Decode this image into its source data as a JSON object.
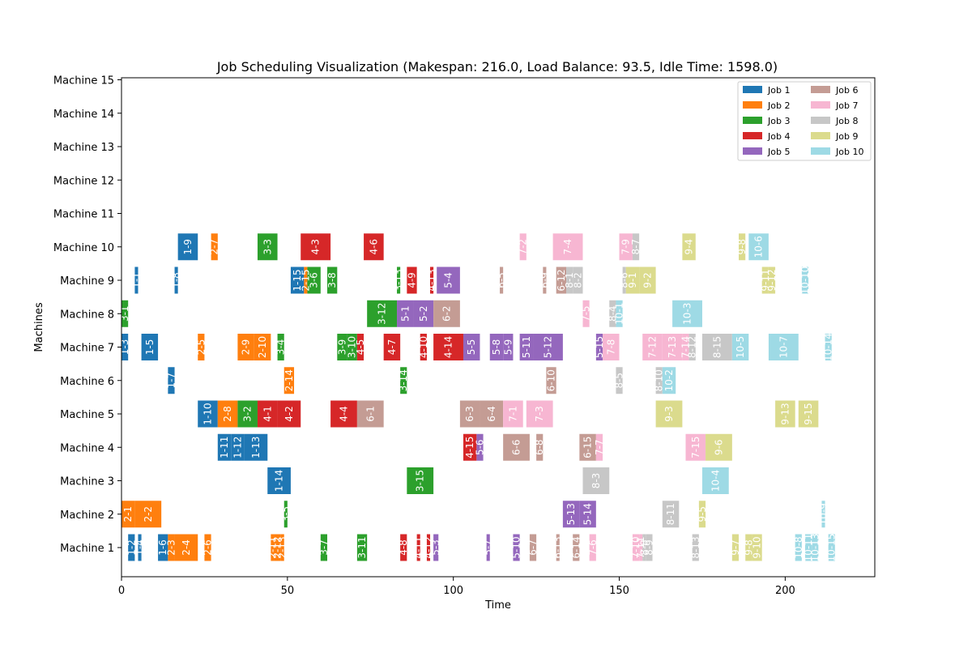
{
  "chart_data": {
    "type": "gantt",
    "title": "Job Scheduling Visualization (Makespan: 216.0, Load Balance: 93.5, Idle Time: 1598.0)",
    "xlabel": "Time",
    "ylabel": "Machines",
    "xlim": [
      0,
      227
    ],
    "x_ticks": [
      0,
      50,
      100,
      150,
      200
    ],
    "machines": [
      "Machine 1",
      "Machine 2",
      "Machine 3",
      "Machine 4",
      "Machine 5",
      "Machine 6",
      "Machine 7",
      "Machine 8",
      "Machine 9",
      "Machine 10",
      "Machine 11",
      "Machine 12",
      "Machine 13",
      "Machine 14",
      "Machine 15"
    ],
    "legend": {
      "placement": "top-right",
      "columns": 2,
      "entries": [
        {
          "name": "Job 1",
          "color": "#1f77b4"
        },
        {
          "name": "Job 2",
          "color": "#ff7f0e"
        },
        {
          "name": "Job 3",
          "color": "#2ca02c"
        },
        {
          "name": "Job 4",
          "color": "#d62728"
        },
        {
          "name": "Job 5",
          "color": "#9467bd"
        },
        {
          "name": "Job 6",
          "color": "#c49c94"
        },
        {
          "name": "Job 7",
          "color": "#f7b6d2"
        },
        {
          "name": "Job 8",
          "color": "#c7c7c7"
        },
        {
          "name": "Job 9",
          "color": "#dbdb8d"
        },
        {
          "name": "Job 10",
          "color": "#9edae5"
        }
      ]
    },
    "tasks": [
      {
        "m": 1,
        "job": 1,
        "label": "1-2",
        "start": 2,
        "dur": 2
      },
      {
        "m": 1,
        "job": 1,
        "label": "1-4",
        "start": 5,
        "dur": 1
      },
      {
        "m": 1,
        "job": 1,
        "label": "1-6",
        "start": 11,
        "dur": 3
      },
      {
        "m": 1,
        "job": 2,
        "label": "2-3",
        "start": 14,
        "dur": 2
      },
      {
        "m": 1,
        "job": 2,
        "label": "2-4",
        "start": 16,
        "dur": 7
      },
      {
        "m": 1,
        "job": 2,
        "label": "2-6",
        "start": 25,
        "dur": 2
      },
      {
        "m": 1,
        "job": 2,
        "label": "2-11",
        "start": 45,
        "dur": 1
      },
      {
        "m": 1,
        "job": 2,
        "label": "2-12",
        "start": 46,
        "dur": 2
      },
      {
        "m": 1,
        "job": 2,
        "label": "2-13",
        "start": 48,
        "dur": 1
      },
      {
        "m": 1,
        "job": 3,
        "label": "3-7",
        "start": 60,
        "dur": 2
      },
      {
        "m": 1,
        "job": 3,
        "label": "3-11",
        "start": 71,
        "dur": 3
      },
      {
        "m": 1,
        "job": 4,
        "label": "4-8",
        "start": 84,
        "dur": 2
      },
      {
        "m": 1,
        "job": 4,
        "label": "4-11",
        "start": 89,
        "dur": 1
      },
      {
        "m": 1,
        "job": 4,
        "label": "4-12",
        "start": 92,
        "dur": 1
      },
      {
        "m": 1,
        "job": 5,
        "label": "5-3",
        "start": 94,
        "dur": 1.5
      },
      {
        "m": 1,
        "job": 5,
        "label": "5-7",
        "start": 110,
        "dur": 1
      },
      {
        "m": 1,
        "job": 5,
        "label": "5-10",
        "start": 118,
        "dur": 2
      },
      {
        "m": 1,
        "job": 6,
        "label": "6-7",
        "start": 123,
        "dur": 2
      },
      {
        "m": 1,
        "job": 6,
        "label": "6-13",
        "start": 131,
        "dur": 1
      },
      {
        "m": 1,
        "job": 6,
        "label": "6-14",
        "start": 136,
        "dur": 2
      },
      {
        "m": 1,
        "job": 7,
        "label": "7-6",
        "start": 141,
        "dur": 2
      },
      {
        "m": 1,
        "job": 7,
        "label": "7-10",
        "start": 154,
        "dur": 2
      },
      {
        "m": 1,
        "job": 7,
        "label": "7-11",
        "start": 156,
        "dur": 1
      },
      {
        "m": 1,
        "job": 8,
        "label": "8-8",
        "start": 157,
        "dur": 1
      },
      {
        "m": 1,
        "job": 8,
        "label": "8-9",
        "start": 158,
        "dur": 2
      },
      {
        "m": 1,
        "job": 8,
        "label": "8-13",
        "start": 172,
        "dur": 2
      },
      {
        "m": 1,
        "job": 9,
        "label": "9-7",
        "start": 184,
        "dur": 2
      },
      {
        "m": 1,
        "job": 9,
        "label": "9-8",
        "start": 188,
        "dur": 2
      },
      {
        "m": 1,
        "job": 9,
        "label": "9-10",
        "start": 190,
        "dur": 3
      },
      {
        "m": 1,
        "job": 10,
        "label": "10-8",
        "start": 203,
        "dur": 2
      },
      {
        "m": 1,
        "job": 10,
        "label": "10-11",
        "start": 206,
        "dur": 2
      },
      {
        "m": 1,
        "job": 10,
        "label": "10-13",
        "start": 208,
        "dur": 2
      },
      {
        "m": 1,
        "job": 10,
        "label": "10-15",
        "start": 213,
        "dur": 2
      },
      {
        "m": 2,
        "job": 2,
        "label": "2-1",
        "start": 0,
        "dur": 4
      },
      {
        "m": 2,
        "job": 2,
        "label": "2-2",
        "start": 4,
        "dur": 8
      },
      {
        "m": 2,
        "job": 3,
        "label": "3-5",
        "start": 49,
        "dur": 1
      },
      {
        "m": 2,
        "job": 5,
        "label": "5-13",
        "start": 133,
        "dur": 5
      },
      {
        "m": 2,
        "job": 5,
        "label": "5-14",
        "start": 138,
        "dur": 5
      },
      {
        "m": 2,
        "job": 8,
        "label": "8-11",
        "start": 163,
        "dur": 5
      },
      {
        "m": 2,
        "job": 9,
        "label": "9-5",
        "start": 174,
        "dur": 2
      },
      {
        "m": 2,
        "job": 10,
        "label": "10-9",
        "start": 211,
        "dur": 1
      },
      {
        "m": 3,
        "job": 1,
        "label": "1-14",
        "start": 44,
        "dur": 7
      },
      {
        "m": 3,
        "job": 3,
        "label": "3-15",
        "start": 86,
        "dur": 8
      },
      {
        "m": 3,
        "job": 8,
        "label": "8-3",
        "start": 139,
        "dur": 8
      },
      {
        "m": 3,
        "job": 10,
        "label": "10-4",
        "start": 175,
        "dur": 8
      },
      {
        "m": 4,
        "job": 1,
        "label": "1-11",
        "start": 29,
        "dur": 4
      },
      {
        "m": 4,
        "job": 1,
        "label": "1-12",
        "start": 33,
        "dur": 4
      },
      {
        "m": 4,
        "job": 1,
        "label": "1-13",
        "start": 37,
        "dur": 7
      },
      {
        "m": 4,
        "job": 4,
        "label": "4-15",
        "start": 103,
        "dur": 4
      },
      {
        "m": 4,
        "job": 5,
        "label": "5-6",
        "start": 107,
        "dur": 2
      },
      {
        "m": 4,
        "job": 6,
        "label": "6-6",
        "start": 115,
        "dur": 8
      },
      {
        "m": 4,
        "job": 6,
        "label": "6-8",
        "start": 125,
        "dur": 2
      },
      {
        "m": 4,
        "job": 6,
        "label": "6-15",
        "start": 138,
        "dur": 5
      },
      {
        "m": 4,
        "job": 7,
        "label": "7-7",
        "start": 143,
        "dur": 2
      },
      {
        "m": 4,
        "job": 7,
        "label": "7-15",
        "start": 170,
        "dur": 6
      },
      {
        "m": 4,
        "job": 9,
        "label": "9-6",
        "start": 176,
        "dur": 8
      },
      {
        "m": 5,
        "job": 1,
        "label": "1-10",
        "start": 23,
        "dur": 6
      },
      {
        "m": 5,
        "job": 2,
        "label": "2-8",
        "start": 29,
        "dur": 6
      },
      {
        "m": 5,
        "job": 3,
        "label": "3-2",
        "start": 35,
        "dur": 6
      },
      {
        "m": 5,
        "job": 4,
        "label": "4-1",
        "start": 41,
        "dur": 6
      },
      {
        "m": 5,
        "job": 4,
        "label": "4-2",
        "start": 47,
        "dur": 7
      },
      {
        "m": 5,
        "job": 4,
        "label": "4-4",
        "start": 63,
        "dur": 8
      },
      {
        "m": 5,
        "job": 6,
        "label": "6-1",
        "start": 71,
        "dur": 8
      },
      {
        "m": 5,
        "job": 6,
        "label": "6-3",
        "start": 102,
        "dur": 6
      },
      {
        "m": 5,
        "job": 6,
        "label": "6-4",
        "start": 108,
        "dur": 7
      },
      {
        "m": 5,
        "job": 7,
        "label": "7-1",
        "start": 115,
        "dur": 6
      },
      {
        "m": 5,
        "job": 7,
        "label": "7-3",
        "start": 122,
        "dur": 8
      },
      {
        "m": 5,
        "job": 9,
        "label": "9-3",
        "start": 161,
        "dur": 8
      },
      {
        "m": 5,
        "job": 9,
        "label": "9-13",
        "start": 197,
        "dur": 6
      },
      {
        "m": 5,
        "job": 9,
        "label": "9-15",
        "start": 204,
        "dur": 6
      },
      {
        "m": 6,
        "job": 1,
        "label": "1-7",
        "start": 14,
        "dur": 2
      },
      {
        "m": 6,
        "job": 2,
        "label": "2-14",
        "start": 49,
        "dur": 3
      },
      {
        "m": 6,
        "job": 3,
        "label": "3-14",
        "start": 84,
        "dur": 2
      },
      {
        "m": 6,
        "job": 6,
        "label": "6-10",
        "start": 128,
        "dur": 3
      },
      {
        "m": 6,
        "job": 8,
        "label": "8-5",
        "start": 149,
        "dur": 2
      },
      {
        "m": 6,
        "job": 8,
        "label": "8-10",
        "start": 161,
        "dur": 2
      },
      {
        "m": 6,
        "job": 10,
        "label": "10-2",
        "start": 163,
        "dur": 4
      },
      {
        "m": 7,
        "job": 1,
        "label": "1-3",
        "start": 0,
        "dur": 2
      },
      {
        "m": 7,
        "job": 1,
        "label": "1-5",
        "start": 6,
        "dur": 5
      },
      {
        "m": 7,
        "job": 2,
        "label": "2-5",
        "start": 23,
        "dur": 2
      },
      {
        "m": 7,
        "job": 2,
        "label": "2-9",
        "start": 35,
        "dur": 5
      },
      {
        "m": 7,
        "job": 2,
        "label": "2-10",
        "start": 40,
        "dur": 5
      },
      {
        "m": 7,
        "job": 3,
        "label": "3-4",
        "start": 47,
        "dur": 2
      },
      {
        "m": 7,
        "job": 3,
        "label": "3-9",
        "start": 65,
        "dur": 3
      },
      {
        "m": 7,
        "job": 3,
        "label": "3-10",
        "start": 68,
        "dur": 3
      },
      {
        "m": 7,
        "job": 4,
        "label": "4-5",
        "start": 71,
        "dur": 2
      },
      {
        "m": 7,
        "job": 4,
        "label": "4-7",
        "start": 79,
        "dur": 5
      },
      {
        "m": 7,
        "job": 4,
        "label": "4-10",
        "start": 90,
        "dur": 2
      },
      {
        "m": 7,
        "job": 4,
        "label": "4-14",
        "start": 94,
        "dur": 9
      },
      {
        "m": 7,
        "job": 5,
        "label": "5-5",
        "start": 103,
        "dur": 5
      },
      {
        "m": 7,
        "job": 5,
        "label": "5-8",
        "start": 111,
        "dur": 4
      },
      {
        "m": 7,
        "job": 5,
        "label": "5-9",
        "start": 115,
        "dur": 3
      },
      {
        "m": 7,
        "job": 5,
        "label": "5-11",
        "start": 120,
        "dur": 4
      },
      {
        "m": 7,
        "job": 5,
        "label": "5-12",
        "start": 124,
        "dur": 9
      },
      {
        "m": 7,
        "job": 5,
        "label": "5-15",
        "start": 143,
        "dur": 2
      },
      {
        "m": 7,
        "job": 7,
        "label": "7-8",
        "start": 145,
        "dur": 5
      },
      {
        "m": 7,
        "job": 7,
        "label": "7-12",
        "start": 157,
        "dur": 6
      },
      {
        "m": 7,
        "job": 7,
        "label": "7-13",
        "start": 163,
        "dur": 6
      },
      {
        "m": 7,
        "job": 7,
        "label": "7-14",
        "start": 169,
        "dur": 2
      },
      {
        "m": 7,
        "job": 8,
        "label": "8-12",
        "start": 171,
        "dur": 2
      },
      {
        "m": 7,
        "job": 8,
        "label": "8-15",
        "start": 175,
        "dur": 9
      },
      {
        "m": 7,
        "job": 10,
        "label": "10-5",
        "start": 184,
        "dur": 5
      },
      {
        "m": 7,
        "job": 10,
        "label": "10-7",
        "start": 195,
        "dur": 9
      },
      {
        "m": 7,
        "job": 10,
        "label": "10-14",
        "start": 212,
        "dur": 2
      },
      {
        "m": 8,
        "job": 3,
        "label": "3-1",
        "start": 0,
        "dur": 2
      },
      {
        "m": 8,
        "job": 3,
        "label": "3-12",
        "start": 74,
        "dur": 9
      },
      {
        "m": 8,
        "job": 5,
        "label": "5-1",
        "start": 83,
        "dur": 5
      },
      {
        "m": 8,
        "job": 5,
        "label": "5-2",
        "start": 88,
        "dur": 6
      },
      {
        "m": 8,
        "job": 6,
        "label": "6-2",
        "start": 94,
        "dur": 8
      },
      {
        "m": 8,
        "job": 7,
        "label": "7-5",
        "start": 139,
        "dur": 2
      },
      {
        "m": 8,
        "job": 8,
        "label": "8-4",
        "start": 147,
        "dur": 2
      },
      {
        "m": 8,
        "job": 10,
        "label": "10-1",
        "start": 149,
        "dur": 2
      },
      {
        "m": 8,
        "job": 10,
        "label": "10-3",
        "start": 166,
        "dur": 9
      },
      {
        "m": 9,
        "job": 1,
        "label": "1-1",
        "start": 4,
        "dur": 1
      },
      {
        "m": 9,
        "job": 1,
        "label": "1-8",
        "start": 16,
        "dur": 1
      },
      {
        "m": 9,
        "job": 1,
        "label": "1-15",
        "start": 51,
        "dur": 4
      },
      {
        "m": 9,
        "job": 2,
        "label": "2-15",
        "start": 55,
        "dur": 1
      },
      {
        "m": 9,
        "job": 3,
        "label": "3-6",
        "start": 56,
        "dur": 4
      },
      {
        "m": 9,
        "job": 3,
        "label": "3-8",
        "start": 62,
        "dur": 3
      },
      {
        "m": 9,
        "job": 3,
        "label": "3-13",
        "start": 83,
        "dur": 1
      },
      {
        "m": 9,
        "job": 4,
        "label": "4-9",
        "start": 86,
        "dur": 3
      },
      {
        "m": 9,
        "job": 4,
        "label": "4-13",
        "start": 93,
        "dur": 1
      },
      {
        "m": 9,
        "job": 5,
        "label": "5-4",
        "start": 95,
        "dur": 7
      },
      {
        "m": 9,
        "job": 6,
        "label": "6-5",
        "start": 114,
        "dur": 1
      },
      {
        "m": 9,
        "job": 6,
        "label": "6-9",
        "start": 127,
        "dur": 1
      },
      {
        "m": 9,
        "job": 6,
        "label": "6-12",
        "start": 131,
        "dur": 3
      },
      {
        "m": 9,
        "job": 8,
        "label": "8-1",
        "start": 134,
        "dur": 2
      },
      {
        "m": 9,
        "job": 8,
        "label": "8-2",
        "start": 136,
        "dur": 3
      },
      {
        "m": 9,
        "job": 8,
        "label": "8-6",
        "start": 151,
        "dur": 1
      },
      {
        "m": 9,
        "job": 9,
        "label": "9-1",
        "start": 152,
        "dur": 4
      },
      {
        "m": 9,
        "job": 9,
        "label": "9-2",
        "start": 156,
        "dur": 5
      },
      {
        "m": 9,
        "job": 9,
        "label": "9-11",
        "start": 193,
        "dur": 2
      },
      {
        "m": 9,
        "job": 9,
        "label": "9-12",
        "start": 195,
        "dur": 2
      },
      {
        "m": 9,
        "job": 10,
        "label": "10-10",
        "start": 205,
        "dur": 2
      },
      {
        "m": 10,
        "job": 1,
        "label": "1-9",
        "start": 17,
        "dur": 6
      },
      {
        "m": 10,
        "job": 2,
        "label": "2-7",
        "start": 27,
        "dur": 2
      },
      {
        "m": 10,
        "job": 3,
        "label": "3-3",
        "start": 41,
        "dur": 6
      },
      {
        "m": 10,
        "job": 4,
        "label": "4-3",
        "start": 54,
        "dur": 9
      },
      {
        "m": 10,
        "job": 4,
        "label": "4-6",
        "start": 73,
        "dur": 6
      },
      {
        "m": 10,
        "job": 7,
        "label": "7-2",
        "start": 120,
        "dur": 2
      },
      {
        "m": 10,
        "job": 7,
        "label": "7-4",
        "start": 130,
        "dur": 9
      },
      {
        "m": 10,
        "job": 7,
        "label": "7-9",
        "start": 150,
        "dur": 4
      },
      {
        "m": 10,
        "job": 8,
        "label": "8-7",
        "start": 154,
        "dur": 2
      },
      {
        "m": 10,
        "job": 9,
        "label": "9-4",
        "start": 169,
        "dur": 4
      },
      {
        "m": 10,
        "job": 9,
        "label": "9-8",
        "start": 186,
        "dur": 2
      },
      {
        "m": 10,
        "job": 10,
        "label": "10-6",
        "start": 189,
        "dur": 6
      }
    ]
  }
}
